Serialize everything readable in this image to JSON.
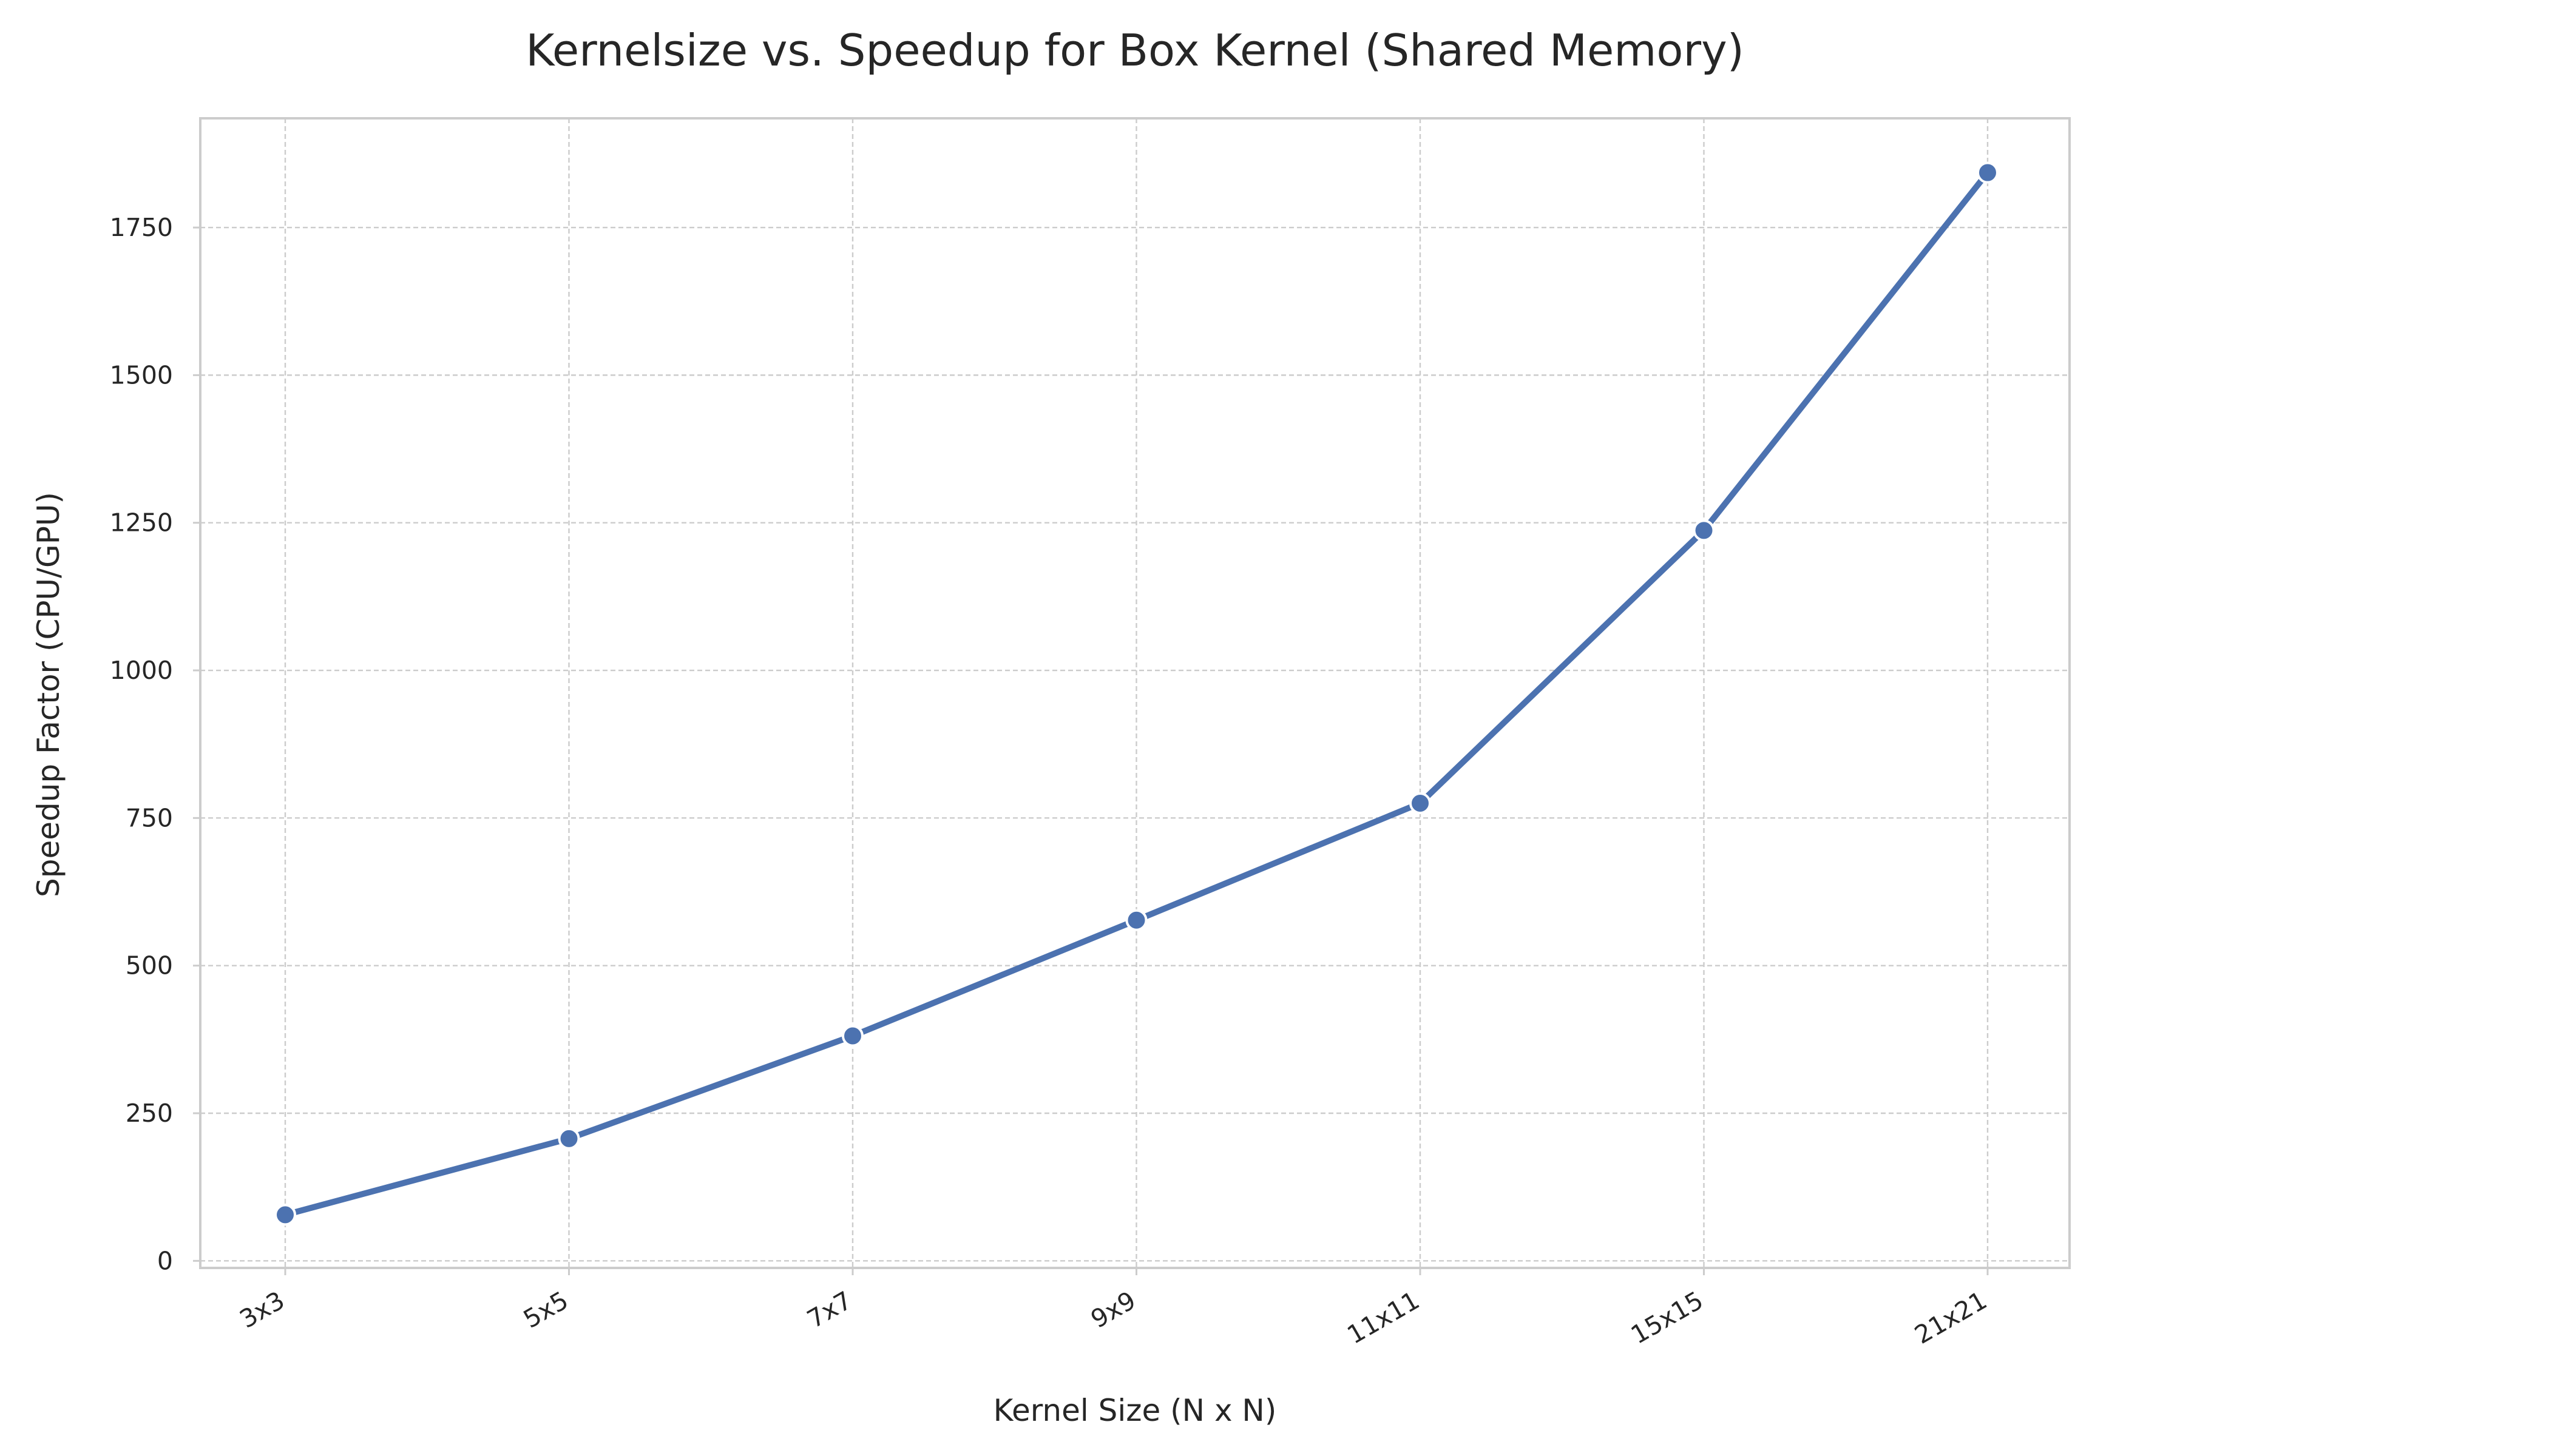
{
  "chart_data": {
    "type": "line",
    "title": "Kernelsize vs. Speedup for Box Kernel (Shared Memory)",
    "xlabel": "Kernel Size (N x N)",
    "ylabel": "Speedup Factor (CPU/GPU)",
    "categories": [
      "3x3",
      "5x5",
      "7x7",
      "9x9",
      "11x11",
      "15x15",
      "21x21"
    ],
    "series": [
      {
        "values": [
          78,
          207,
          381,
          577,
          775,
          1237,
          1843
        ]
      }
    ],
    "ylim": [
      -12,
      1935
    ],
    "yticks": [
      0,
      250,
      500,
      750,
      1000,
      1250,
      1500,
      1750
    ],
    "grid": true,
    "line_color": "#4c72b0",
    "marker": "circle"
  }
}
